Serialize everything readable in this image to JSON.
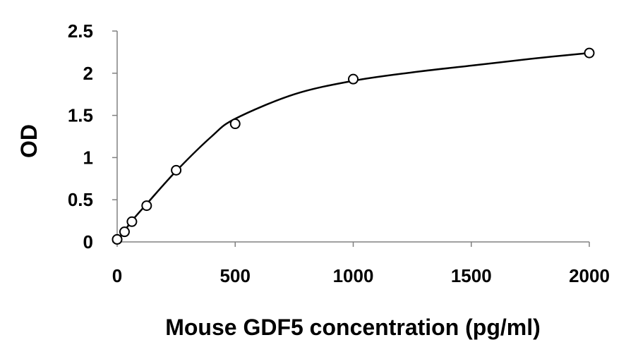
{
  "chart_data": {
    "type": "scatter",
    "title": "",
    "xlabel": "Mouse GDF5 concentration (pg/ml)",
    "ylabel": "OD",
    "xlim": [
      0,
      2000
    ],
    "ylim": [
      0,
      2.5
    ],
    "x_ticks": [
      "0",
      "500",
      "1000",
      "1500",
      "2000"
    ],
    "y_ticks": [
      "0",
      "0.5",
      "1",
      "1.5",
      "2",
      "2.5"
    ],
    "grid": false,
    "legend": "none",
    "series": [
      {
        "x": [
          0,
          31.25,
          62.5,
          125,
          250,
          500,
          1000,
          2000
        ],
        "y": [
          0.03,
          0.12,
          0.24,
          0.43,
          0.85,
          1.4,
          1.93,
          2.24
        ]
      }
    ],
    "fit_curve": {
      "model": "smooth",
      "x": [
        0,
        31.25,
        62.5,
        125,
        250,
        400,
        500,
        750,
        1000,
        1250,
        1500,
        1750,
        2000
      ],
      "y": [
        0.0,
        0.13,
        0.25,
        0.45,
        0.84,
        1.25,
        1.46,
        1.75,
        1.91,
        2.01,
        2.09,
        2.17,
        2.24
      ]
    },
    "colors": {
      "line": "#000000",
      "marker_stroke": "#000000",
      "marker_fill": "#ffffff"
    }
  }
}
